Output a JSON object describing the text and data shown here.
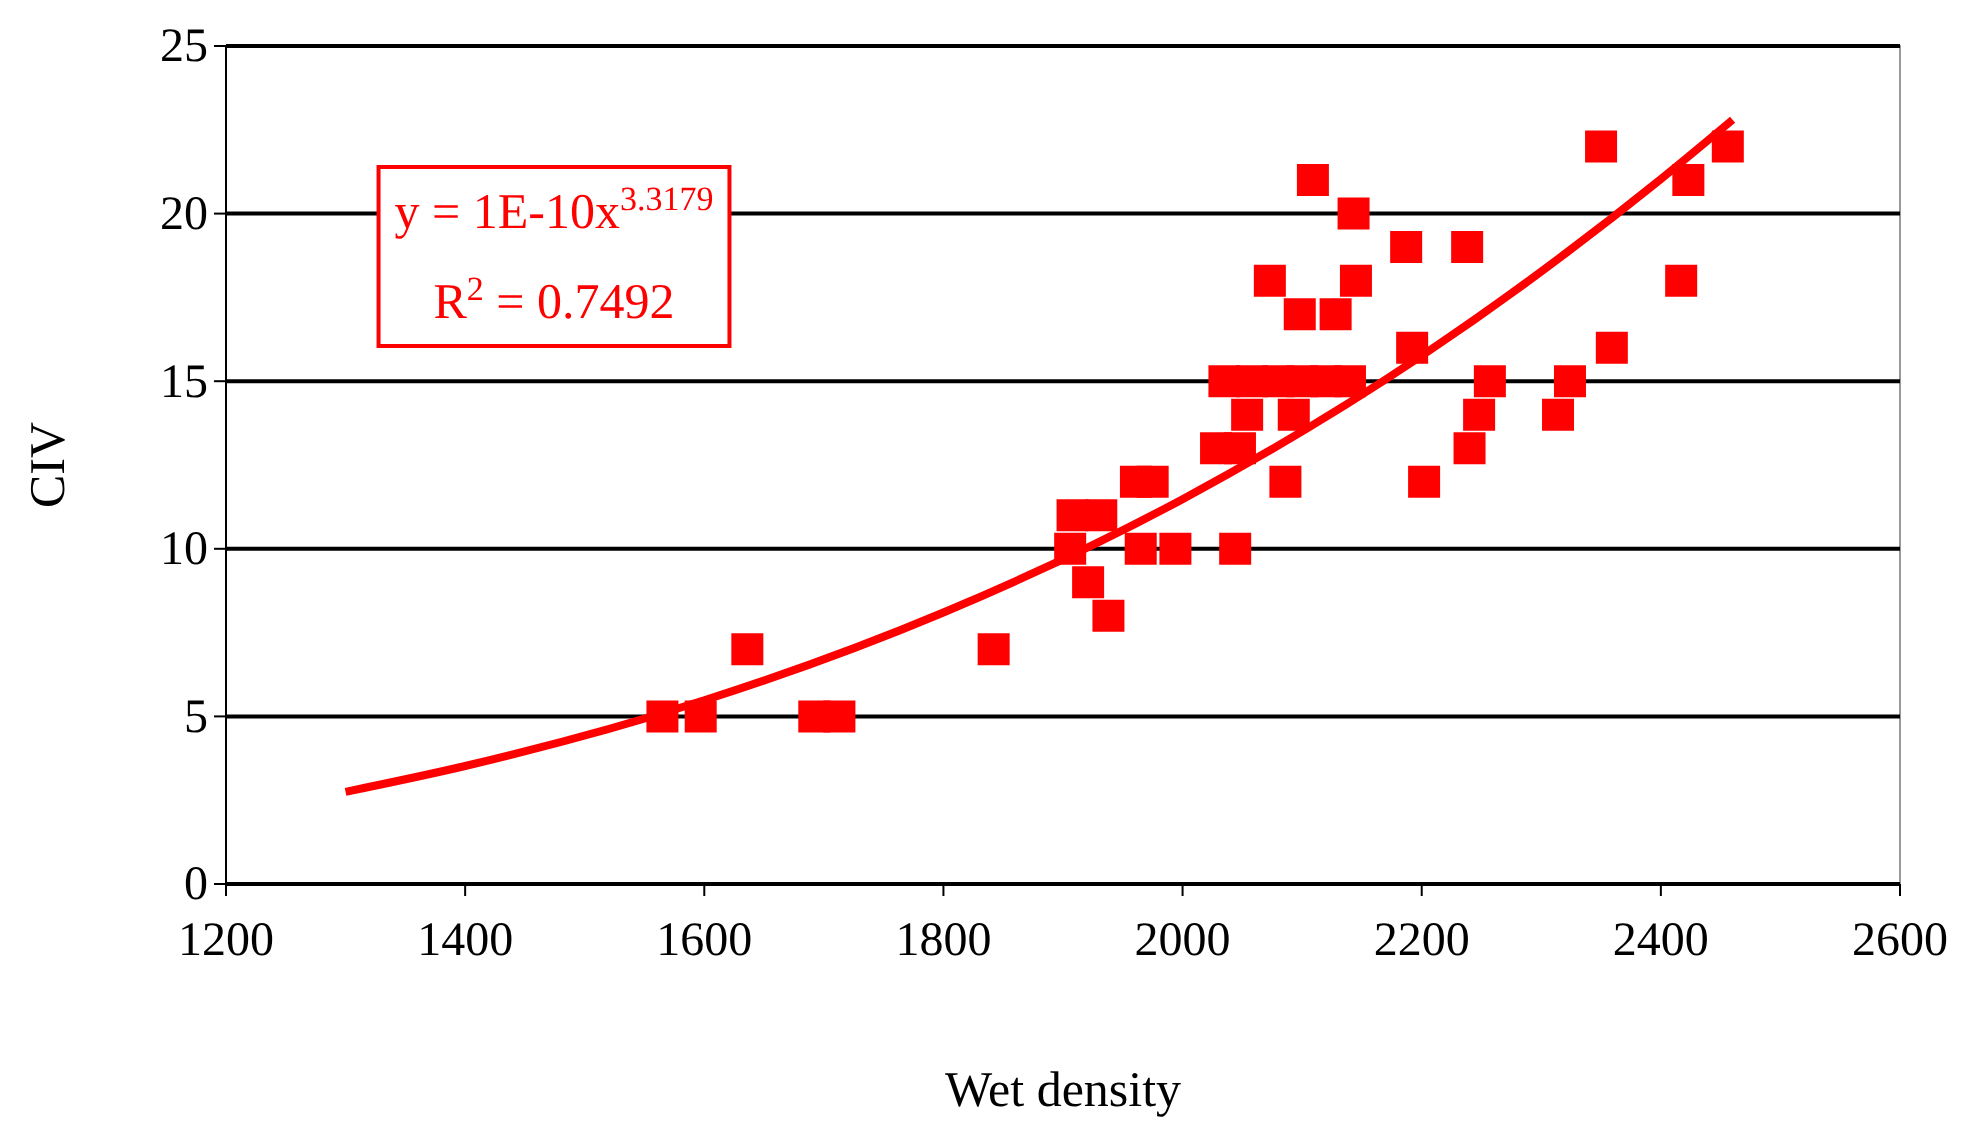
{
  "chart_data": {
    "type": "scatter",
    "xlabel": "Wet density",
    "ylabel": "CIV",
    "xlim": [
      1200,
      2600
    ],
    "xticks": [
      1200,
      1400,
      1600,
      1800,
      2000,
      2200,
      2400,
      2600
    ],
    "ylim": [
      0,
      25
    ],
    "yticks": [
      0,
      5,
      10,
      15,
      20,
      25
    ],
    "grid": "y",
    "annotations": [
      "y = 1E-10x$^{3.3179}$",
      "R$^{2}$ = 0.7492"
    ],
    "series": [
      {
        "color": "#ff0000",
        "marker": "square",
        "x": [
          1565,
          1597,
          1636,
          1692,
          1713,
          1842,
          1906,
          1965,
          1994,
          2044,
          1908,
          1932,
          1921,
          1938,
          1961,
          1975,
          2086,
          2202,
          2028,
          2048,
          2240,
          2054,
          2093,
          2248,
          2314,
          2035,
          2058,
          2080,
          2100,
          2120,
          2140,
          2257,
          2324,
          2192,
          2417,
          2359,
          2238,
          2423,
          2350,
          2456,
          2098,
          2128,
          2073,
          2145,
          2187,
          2143,
          2109
        ],
        "values": [
          5,
          5,
          7,
          5,
          5,
          7,
          10,
          10,
          10,
          10,
          11,
          11,
          9,
          8,
          12,
          12,
          12,
          12,
          13,
          13,
          13,
          14,
          14,
          14,
          14,
          15,
          15,
          15,
          15,
          15,
          15,
          15,
          15,
          16,
          18,
          16,
          19,
          21,
          22,
          22,
          17,
          17,
          18,
          18,
          19,
          20,
          21
        ]
      },
      {
        "type": "line",
        "color": "#ff0000",
        "marker": "none",
        "x": [
          1300,
          1400,
          1600,
          1800,
          2000,
          2200,
          2400,
          2460
        ],
        "values": [
          2.75,
          3.52,
          5.48,
          8.1,
          11.48,
          15.76,
          21.03,
          22.8
        ]
      }
    ]
  }
}
